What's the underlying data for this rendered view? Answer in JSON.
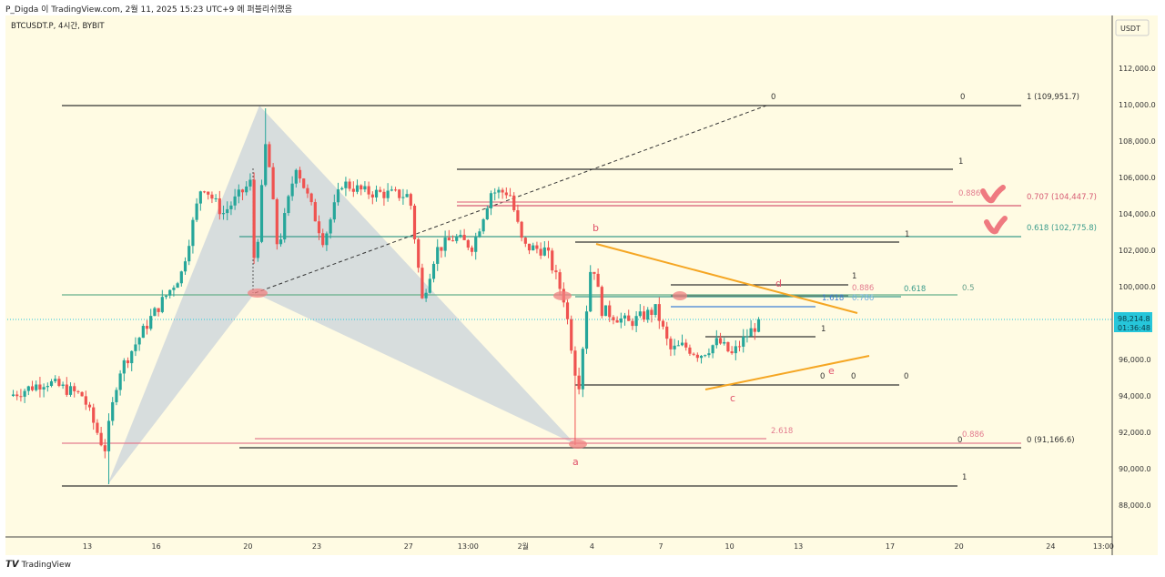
{
  "header": {
    "publish_line": "P_Digda 이 TradingView.com, 2월 11, 2025 15:23 UTC+9 에 퍼블리쉬했음"
  },
  "footer": {
    "logo_text": "TradingView"
  },
  "chart_data": {
    "type": "candlestick",
    "symbol_line": "BTCUSDT.P, 4시간, BYBIT",
    "currency": "USDT",
    "ylim": [
      86500,
      113500
    ],
    "y_ticks": [
      {
        "value": 112000,
        "label": "112,000.0"
      },
      {
        "value": 110000,
        "label": "110,000.0"
      },
      {
        "value": 108000,
        "label": "108,000.0"
      },
      {
        "value": 106000,
        "label": "106,000.0"
      },
      {
        "value": 104000,
        "label": "104,000.0"
      },
      {
        "value": 102000,
        "label": "102,000.0"
      },
      {
        "value": 100000,
        "label": "100,000.0"
      },
      {
        "value": 96000,
        "label": "96,000.0"
      },
      {
        "value": 94000,
        "label": "94,000.0"
      },
      {
        "value": 92000,
        "label": "92,000.0"
      },
      {
        "value": 90000,
        "label": "90,000.0"
      },
      {
        "value": 88000,
        "label": "88,000.0"
      }
    ],
    "x_ticks": [
      {
        "day": 13,
        "label": "13"
      },
      {
        "day": 16,
        "label": "16"
      },
      {
        "day": 20,
        "label": "20"
      },
      {
        "day": 23,
        "label": "23"
      },
      {
        "day": 27,
        "label": "27"
      },
      {
        "day": 29.6,
        "label": "13:00"
      },
      {
        "day": 32,
        "label": "2월"
      },
      {
        "day": 35,
        "label": "4"
      },
      {
        "day": 38,
        "label": "7"
      },
      {
        "day": 41,
        "label": "10"
      },
      {
        "day": 44,
        "label": "13"
      },
      {
        "day": 48,
        "label": "17"
      },
      {
        "day": 51,
        "label": "20"
      },
      {
        "day": 55,
        "label": "24"
      },
      {
        "day": 57.3,
        "label": "13:00"
      }
    ],
    "last_price": {
      "value": 98214.8,
      "label": "98,214.8",
      "countdown": "01:36:48",
      "color": "#26c6da"
    },
    "colors": {
      "up": "#26a69a",
      "down": "#ef5350"
    },
    "price_path": [
      [
        9.6,
        94000
      ],
      [
        11.2,
        94800
      ],
      [
        12.8,
        94000
      ],
      [
        13.75,
        91000
      ],
      [
        14.35,
        95250
      ],
      [
        15.75,
        98250
      ],
      [
        17.1,
        100750
      ],
      [
        18.0,
        105700
      ],
      [
        18.9,
        104000
      ],
      [
        20.1,
        105700
      ],
      [
        20.3,
        100800
      ],
      [
        20.8,
        108200
      ],
      [
        21.3,
        102000
      ],
      [
        22.1,
        106700
      ],
      [
        23.3,
        102500
      ],
      [
        24.1,
        105700
      ],
      [
        25.1,
        105200
      ],
      [
        27.05,
        105000
      ],
      [
        27.6,
        99250
      ],
      [
        28.2,
        102000
      ],
      [
        29.0,
        102700
      ],
      [
        29.8,
        102200
      ],
      [
        30.6,
        105200
      ],
      [
        31.4,
        105200
      ],
      [
        32.0,
        102200
      ],
      [
        33.0,
        102000
      ],
      [
        33.8,
        99250
      ],
      [
        34.4,
        94300
      ],
      [
        35.0,
        101700
      ],
      [
        35.4,
        98750
      ],
      [
        36.6,
        98000
      ],
      [
        37.8,
        98750
      ],
      [
        38.4,
        96500
      ],
      [
        39.0,
        96750
      ],
      [
        39.7,
        96250
      ],
      [
        40.5,
        97000
      ],
      [
        41.1,
        96250
      ],
      [
        41.7,
        97250
      ],
      [
        42.4,
        98214.8
      ]
    ],
    "extreme_wicks": [
      [
        13.9,
        89150
      ],
      [
        20.7,
        109800
      ],
      [
        34.35,
        91300
      ]
    ]
  },
  "drawings": {
    "fib_top": {
      "left0": "0",
      "right0": "0",
      "label": "1 (109,951.7)"
    },
    "fib_1_a": "1",
    "fib_0886_a": "0.886",
    "fib_0707": "0.707 (104,447.7)",
    "fib_0618": "0.618 (102,775.8)",
    "fib_1_b": "1",
    "fib_1_c": "1",
    "fib_0886_b": "0.886",
    "fib_0786": "0.786",
    "fib_1618": "1.618",
    "fib_0618_b": "0.618",
    "fib_05": "0.5",
    "fib_1_d": "1",
    "zero_a": "0",
    "zero_b": "0",
    "zero_c": "0",
    "fib_2618": "2.618",
    "fib_0886_c": "0.886",
    "zero_d": "0",
    "fib_bottom0": "0 (91,166.6)",
    "fib_bottom1": "1",
    "points": {
      "a": "a",
      "b": "b",
      "c": "c",
      "d": "d",
      "e": "e"
    }
  }
}
